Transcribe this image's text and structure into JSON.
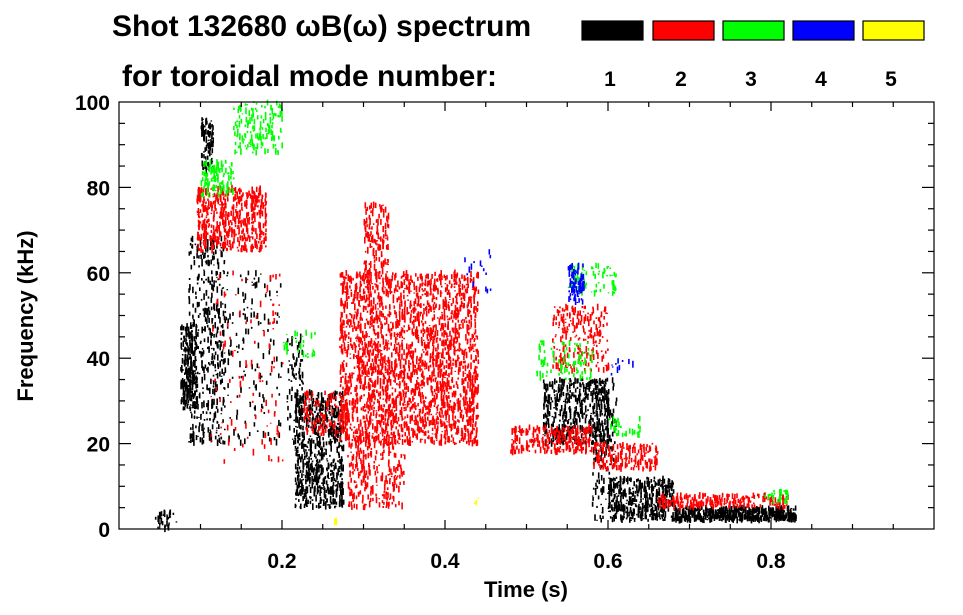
{
  "chart_data": {
    "type": "scatter",
    "title_line1": "Shot 132680 ωB(ω) spectrum",
    "title_line2": "for toroidal mode number:",
    "xlabel": "Time (s)",
    "ylabel": "Frequency (kHz)",
    "xlim": [
      0.0,
      1.0
    ],
    "ylim": [
      0,
      100
    ],
    "x_ticks": [
      0.2,
      0.4,
      0.6,
      0.8
    ],
    "x_tick_labels": [
      "0.2",
      "0.4",
      "0.6",
      "0.8"
    ],
    "y_ticks": [
      0,
      20,
      40,
      60,
      80,
      100
    ],
    "y_tick_labels": [
      "0",
      "20",
      "40",
      "60",
      "80",
      "100"
    ],
    "legend": [
      {
        "mode": "1",
        "color": "#000000"
      },
      {
        "mode": "2",
        "color": "#ff0000"
      },
      {
        "mode": "3",
        "color": "#00ff00"
      },
      {
        "mode": "4",
        "color": "#0000ff"
      },
      {
        "mode": "5",
        "color": "#ffff00"
      }
    ],
    "series": [
      {
        "name": "n=1",
        "color": "#000000",
        "regions": [
          {
            "t": [
              0.04,
              0.07
            ],
            "f": [
              0,
              4
            ],
            "n": 30
          },
          {
            "t": [
              0.075,
              0.095
            ],
            "f": [
              28,
              48
            ],
            "n": 220
          },
          {
            "t": [
              0.085,
              0.13
            ],
            "f": [
              20,
              68
            ],
            "n": 420
          },
          {
            "t": [
              0.1,
              0.115
            ],
            "f": [
              84,
              96
            ],
            "n": 90
          },
          {
            "t": [
              0.13,
              0.2
            ],
            "f": [
              20,
              60
            ],
            "n": 140
          },
          {
            "t": [
              0.215,
              0.275
            ],
            "f": [
              5,
              32
            ],
            "n": 700
          },
          {
            "t": [
              0.205,
              0.225
            ],
            "f": [
              20,
              45
            ],
            "n": 80
          },
          {
            "t": [
              0.52,
              0.6
            ],
            "f": [
              20,
              35
            ],
            "n": 480
          },
          {
            "t": [
              0.58,
              0.61
            ],
            "f": [
              2,
              35
            ],
            "n": 160
          },
          {
            "t": [
              0.6,
              0.68
            ],
            "f": [
              2,
              12
            ],
            "n": 420
          },
          {
            "t": [
              0.68,
              0.83
            ],
            "f": [
              2,
              5
            ],
            "n": 520
          }
        ]
      },
      {
        "name": "n=2",
        "color": "#ff0000",
        "regions": [
          {
            "t": [
              0.095,
              0.18
            ],
            "f": [
              65,
              80
            ],
            "n": 520
          },
          {
            "t": [
              0.11,
              0.2
            ],
            "f": [
              15,
              60
            ],
            "n": 100
          },
          {
            "t": [
              0.225,
              0.28
            ],
            "f": [
              22,
              32
            ],
            "n": 120
          },
          {
            "t": [
              0.27,
              0.44
            ],
            "f": [
              20,
              60
            ],
            "n": 2400
          },
          {
            "t": [
              0.28,
              0.35
            ],
            "f": [
              5,
              22
            ],
            "n": 260
          },
          {
            "t": [
              0.3,
              0.33
            ],
            "f": [
              60,
              76
            ],
            "n": 140
          },
          {
            "t": [
              0.48,
              0.58
            ],
            "f": [
              18,
              24
            ],
            "n": 260
          },
          {
            "t": [
              0.53,
              0.6
            ],
            "f": [
              37,
              52
            ],
            "n": 220
          },
          {
            "t": [
              0.58,
              0.66
            ],
            "f": [
              14,
              20
            ],
            "n": 180
          },
          {
            "t": [
              0.66,
              0.82
            ],
            "f": [
              5,
              8
            ],
            "n": 220
          }
        ]
      },
      {
        "name": "n=3",
        "color": "#00ff00",
        "regions": [
          {
            "t": [
              0.1,
              0.14
            ],
            "f": [
              78,
              86
            ],
            "n": 120
          },
          {
            "t": [
              0.14,
              0.2
            ],
            "f": [
              88,
              100
            ],
            "n": 140
          },
          {
            "t": [
              0.2,
              0.24
            ],
            "f": [
              40,
              46
            ],
            "n": 30
          },
          {
            "t": [
              0.51,
              0.58
            ],
            "f": [
              35,
              44
            ],
            "n": 90
          },
          {
            "t": [
              0.55,
              0.61
            ],
            "f": [
              55,
              62
            ],
            "n": 70
          },
          {
            "t": [
              0.6,
              0.64
            ],
            "f": [
              22,
              26
            ],
            "n": 30
          },
          {
            "t": [
              0.79,
              0.82
            ],
            "f": [
              6,
              9
            ],
            "n": 30
          }
        ]
      },
      {
        "name": "n=4",
        "color": "#0000ff",
        "regions": [
          {
            "t": [
              0.55,
              0.57
            ],
            "f": [
              53,
              62
            ],
            "n": 80
          },
          {
            "t": [
              0.42,
              0.46
            ],
            "f": [
              55,
              65
            ],
            "n": 15
          },
          {
            "t": [
              0.6,
              0.63
            ],
            "f": [
              35,
              40
            ],
            "n": 10
          }
        ]
      },
      {
        "name": "n=5",
        "color": "#ffff00",
        "regions": [
          {
            "t": [
              0.26,
              0.27
            ],
            "f": [
              1,
              3
            ],
            "n": 3
          },
          {
            "t": [
              0.43,
              0.44
            ],
            "f": [
              6,
              8
            ],
            "n": 3
          }
        ]
      }
    ]
  }
}
